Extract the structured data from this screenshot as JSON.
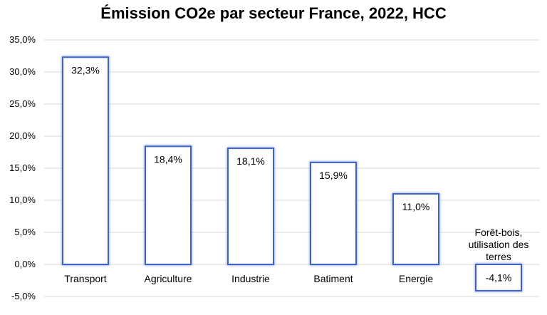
{
  "chart_data": {
    "type": "bar",
    "title": "Émission CO2e par secteur France, 2022, HCC",
    "categories": [
      "Transport",
      "Agriculture",
      "Industrie",
      "Batiment",
      "Energie",
      "Forêt-bois, utilisation des terres"
    ],
    "category_label_lines": [
      [
        "Transport"
      ],
      [
        "Agriculture"
      ],
      [
        "Industrie"
      ],
      [
        "Batiment"
      ],
      [
        "Energie"
      ],
      [
        "Forêt-bois,",
        "utilisation des",
        "terres"
      ]
    ],
    "values": [
      32.3,
      18.4,
      18.1,
      15.9,
      11.0,
      -4.1
    ],
    "data_labels": [
      "32,3%",
      "18,4%",
      "18,1%",
      "15,9%",
      "11,0%",
      "-4,1%"
    ],
    "y_ticks": [
      -5,
      0,
      5,
      10,
      15,
      20,
      25,
      30,
      35
    ],
    "y_tick_labels": [
      "-5,0%",
      "0,0%",
      "5,0%",
      "10,0%",
      "15,0%",
      "20,0%",
      "25,0%",
      "30,0%",
      "35,0%"
    ],
    "ylim": [
      -5,
      35
    ],
    "xlabel": "",
    "ylabel": "",
    "grid": true,
    "legend": "none",
    "colors": {
      "bar_fill": "#ffffff",
      "bar_border": "#3d62c9",
      "grid": "#d9d9d9"
    }
  }
}
